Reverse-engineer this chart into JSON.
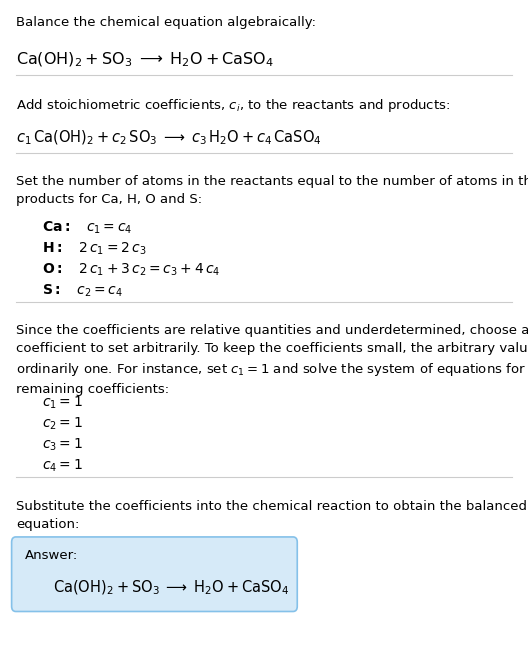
{
  "bg_color": "#ffffff",
  "text_color": "#000000",
  "section1_title": "Balance the chemical equation algebraically:",
  "section1_eq": "$\\mathrm{Ca(OH)_2 + SO_3 \\;\\longrightarrow\\; H_2O + CaSO_4}$",
  "section2_title": "Add stoichiometric coefficients, $c_i$, to the reactants and products:",
  "section2_eq": "$c_1\\,\\mathrm{Ca(OH)_2} + c_2\\,\\mathrm{SO_3} \\;\\longrightarrow\\; c_3\\,\\mathrm{H_2O} + c_4\\,\\mathrm{CaSO_4}$",
  "section3_title": "Set the number of atoms in the reactants equal to the number of atoms in the\nproducts for Ca, H, O and S:",
  "section3_lines": [
    "$\\mathbf{Ca:}\\quad c_1 = c_4$",
    "$\\mathbf{H:}\\quad 2\\,c_1 = 2\\,c_3$",
    "$\\mathbf{O:}\\quad 2\\,c_1 + 3\\,c_2 = c_3 + 4\\,c_4$",
    "$\\mathbf{S:}\\quad c_2 = c_4$"
  ],
  "section4_title": "Since the coefficients are relative quantities and underdetermined, choose a\ncoefficient to set arbitrarily. To keep the coefficients small, the arbitrary value is\nordinarily one. For instance, set $c_1 = 1$ and solve the system of equations for the\nremaining coefficients:",
  "section4_lines": [
    "$c_1 = 1$",
    "$c_2 = 1$",
    "$c_3 = 1$",
    "$c_4 = 1$"
  ],
  "section5_title": "Substitute the coefficients into the chemical reaction to obtain the balanced\nequation:",
  "answer_label": "Answer:",
  "answer_eq": "$\\mathrm{Ca(OH)_2 + SO_3 \\;\\longrightarrow\\; H_2O + CaSO_4}$",
  "answer_box_color": "#d6eaf8",
  "answer_box_border": "#85c1e9",
  "divider_color": "#cccccc",
  "divider_linewidth": 0.8
}
